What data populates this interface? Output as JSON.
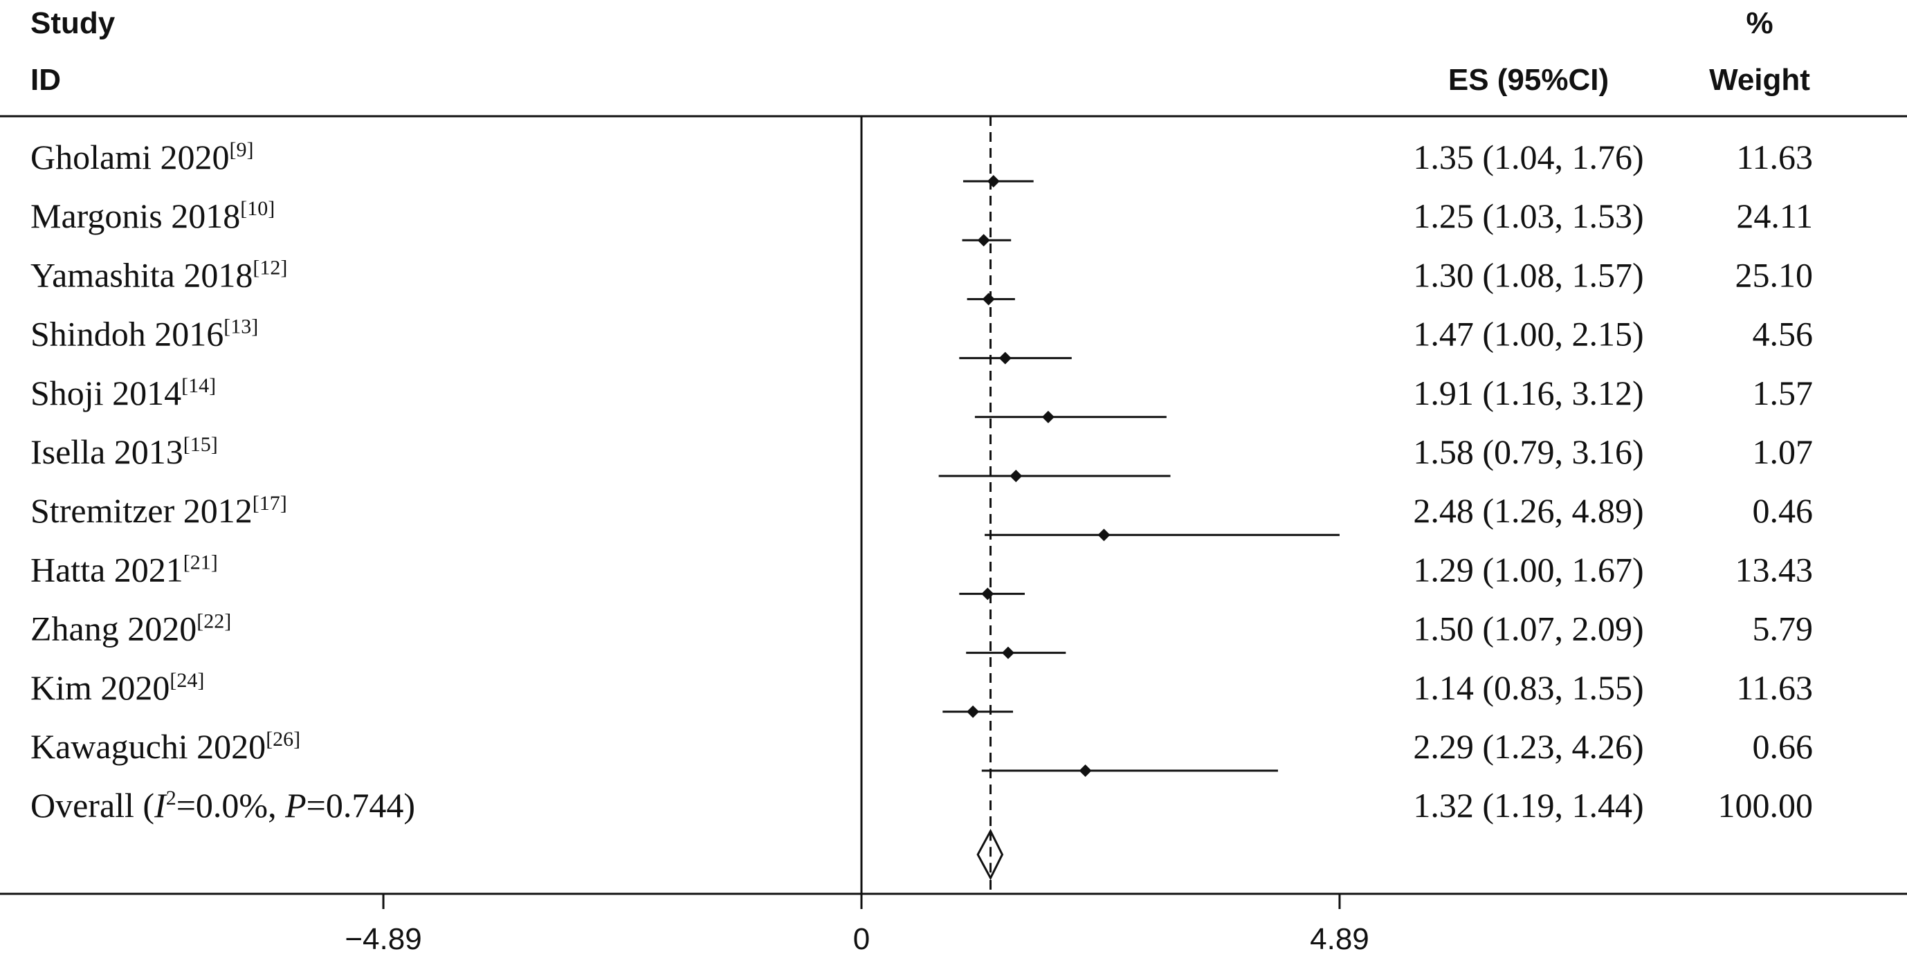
{
  "chart_data": {
    "type": "forest",
    "columns": {
      "study_line1": "Study",
      "study_line2": "ID",
      "es": "ES (95%CI)",
      "weight_line1": "%",
      "weight_line2": "Weight"
    },
    "studies": [
      {
        "name": "Gholami 2020",
        "ref": "[9]",
        "es": 1.35,
        "lo": 1.04,
        "hi": 1.76,
        "es_text": "1.35 (1.04, 1.76)",
        "weight": "11.63"
      },
      {
        "name": "Margonis 2018",
        "ref": "[10]",
        "es": 1.25,
        "lo": 1.03,
        "hi": 1.53,
        "es_text": "1.25 (1.03, 1.53)",
        "weight": "24.11"
      },
      {
        "name": "Yamashita 2018",
        "ref": "[12]",
        "es": 1.3,
        "lo": 1.08,
        "hi": 1.57,
        "es_text": "1.30 (1.08, 1.57)",
        "weight": "25.10"
      },
      {
        "name": "Shindoh 2016",
        "ref": "[13]",
        "es": 1.47,
        "lo": 1.0,
        "hi": 2.15,
        "es_text": "1.47 (1.00, 2.15)",
        "weight": "4.56"
      },
      {
        "name": "Shoji 2014",
        "ref": "[14]",
        "es": 1.91,
        "lo": 1.16,
        "hi": 3.12,
        "es_text": "1.91 (1.16, 3.12)",
        "weight": "1.57"
      },
      {
        "name": "Isella 2013",
        "ref": "[15]",
        "es": 1.58,
        "lo": 0.79,
        "hi": 3.16,
        "es_text": "1.58 (0.79, 3.16)",
        "weight": "1.07"
      },
      {
        "name": "Stremitzer 2012",
        "ref": "[17]",
        "es": 2.48,
        "lo": 1.26,
        "hi": 4.89,
        "es_text": "2.48 (1.26, 4.89)",
        "weight": "0.46"
      },
      {
        "name": "Hatta 2021",
        "ref": "[21]",
        "es": 1.29,
        "lo": 1.0,
        "hi": 1.67,
        "es_text": "1.29 (1.00, 1.67)",
        "weight": "13.43"
      },
      {
        "name": "Zhang 2020",
        "ref": "[22]",
        "es": 1.5,
        "lo": 1.07,
        "hi": 2.09,
        "es_text": "1.50 (1.07, 2.09)",
        "weight": "5.79"
      },
      {
        "name": "Kim 2020",
        "ref": "[24]",
        "es": 1.14,
        "lo": 0.83,
        "hi": 1.55,
        "es_text": "1.14 (0.83, 1.55)",
        "weight": "11.63"
      },
      {
        "name": "Kawaguchi 2020",
        "ref": "[26]",
        "es": 2.29,
        "lo": 1.23,
        "hi": 4.26,
        "es_text": "2.29 (1.23, 4.26)",
        "weight": "0.66"
      }
    ],
    "overall": {
      "label_prefix": "Overall  (",
      "i_symbol": "I",
      "i_sup": "2",
      "label_mid": "=0.0%, ",
      "p_symbol": "P",
      "label_end": "=0.744)",
      "es": 1.32,
      "lo": 1.19,
      "hi": 1.44,
      "es_text": "1.32 (1.19, 1.44)",
      "weight": "100.00"
    },
    "x_axis": {
      "ticks": [
        -4.89,
        0,
        4.89
      ],
      "tick_labels": [
        "−4.89",
        "0",
        "4.89"
      ],
      "range": [
        -8.8,
        10.4
      ]
    },
    "null_line": 0,
    "overall_line": 1.32
  }
}
